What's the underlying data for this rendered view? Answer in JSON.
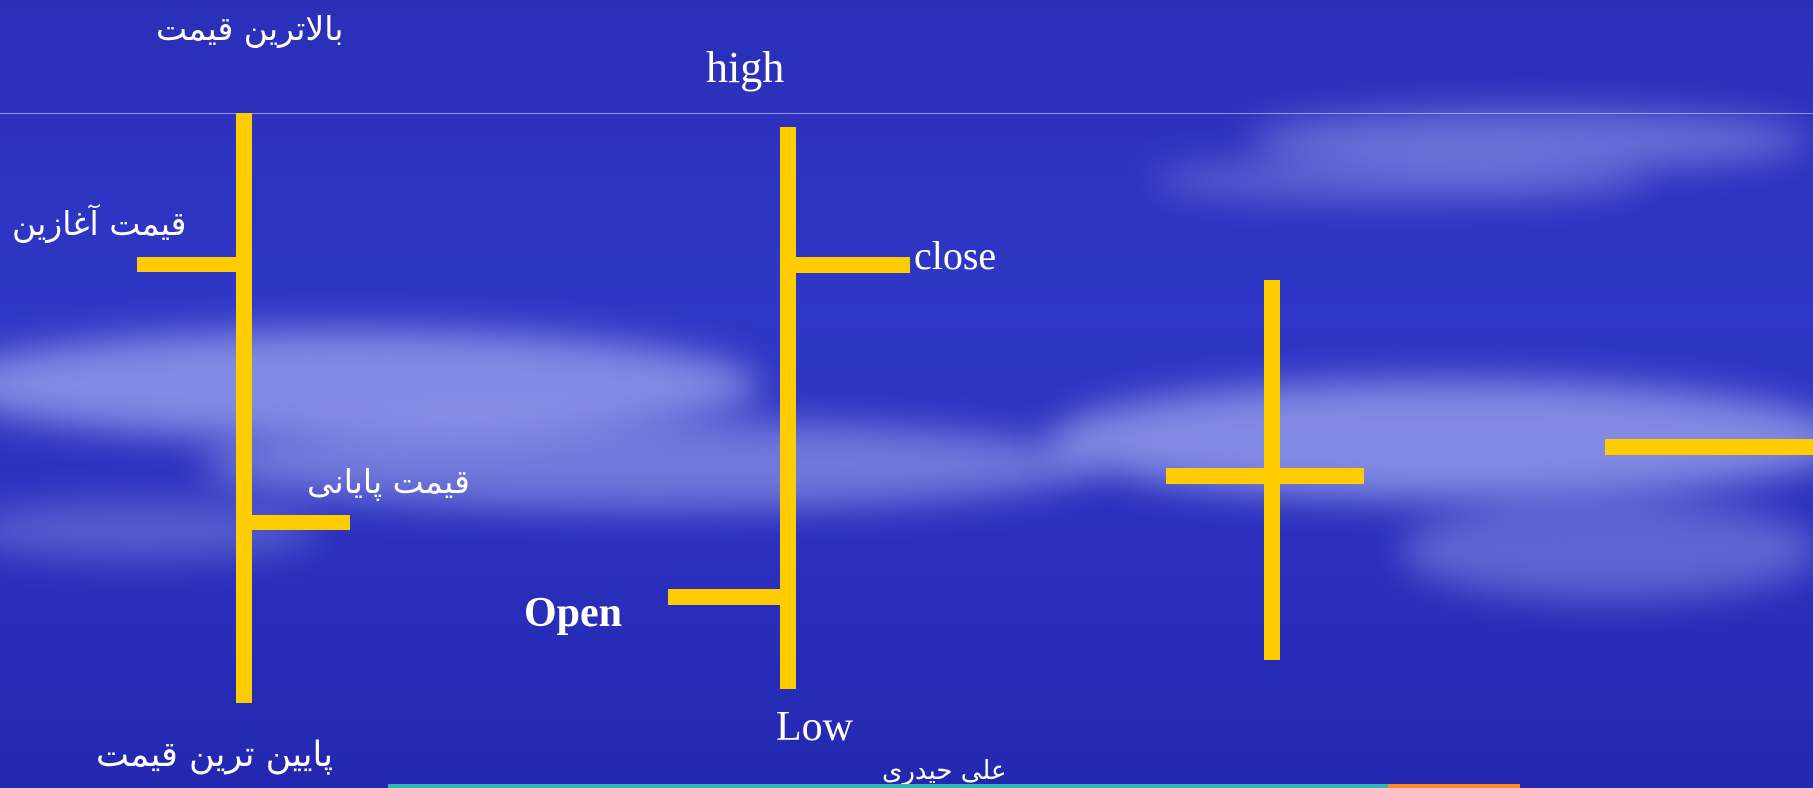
{
  "diagram": {
    "candle_one": {
      "high_label": "بالاترین قیمت",
      "open_label": "قیمت آغازین",
      "close_label": "قیمت پایانی",
      "low_label": "پایین ترین قیمت"
    },
    "candle_two": {
      "high_label": "high",
      "close_label": "close",
      "open_label": "Open",
      "low_label": "Low"
    }
  },
  "footer": {
    "author": "علی حیدری"
  },
  "colors": {
    "bar": "#ffcc00",
    "background": "#2b30c0",
    "text": "#ffffff"
  }
}
